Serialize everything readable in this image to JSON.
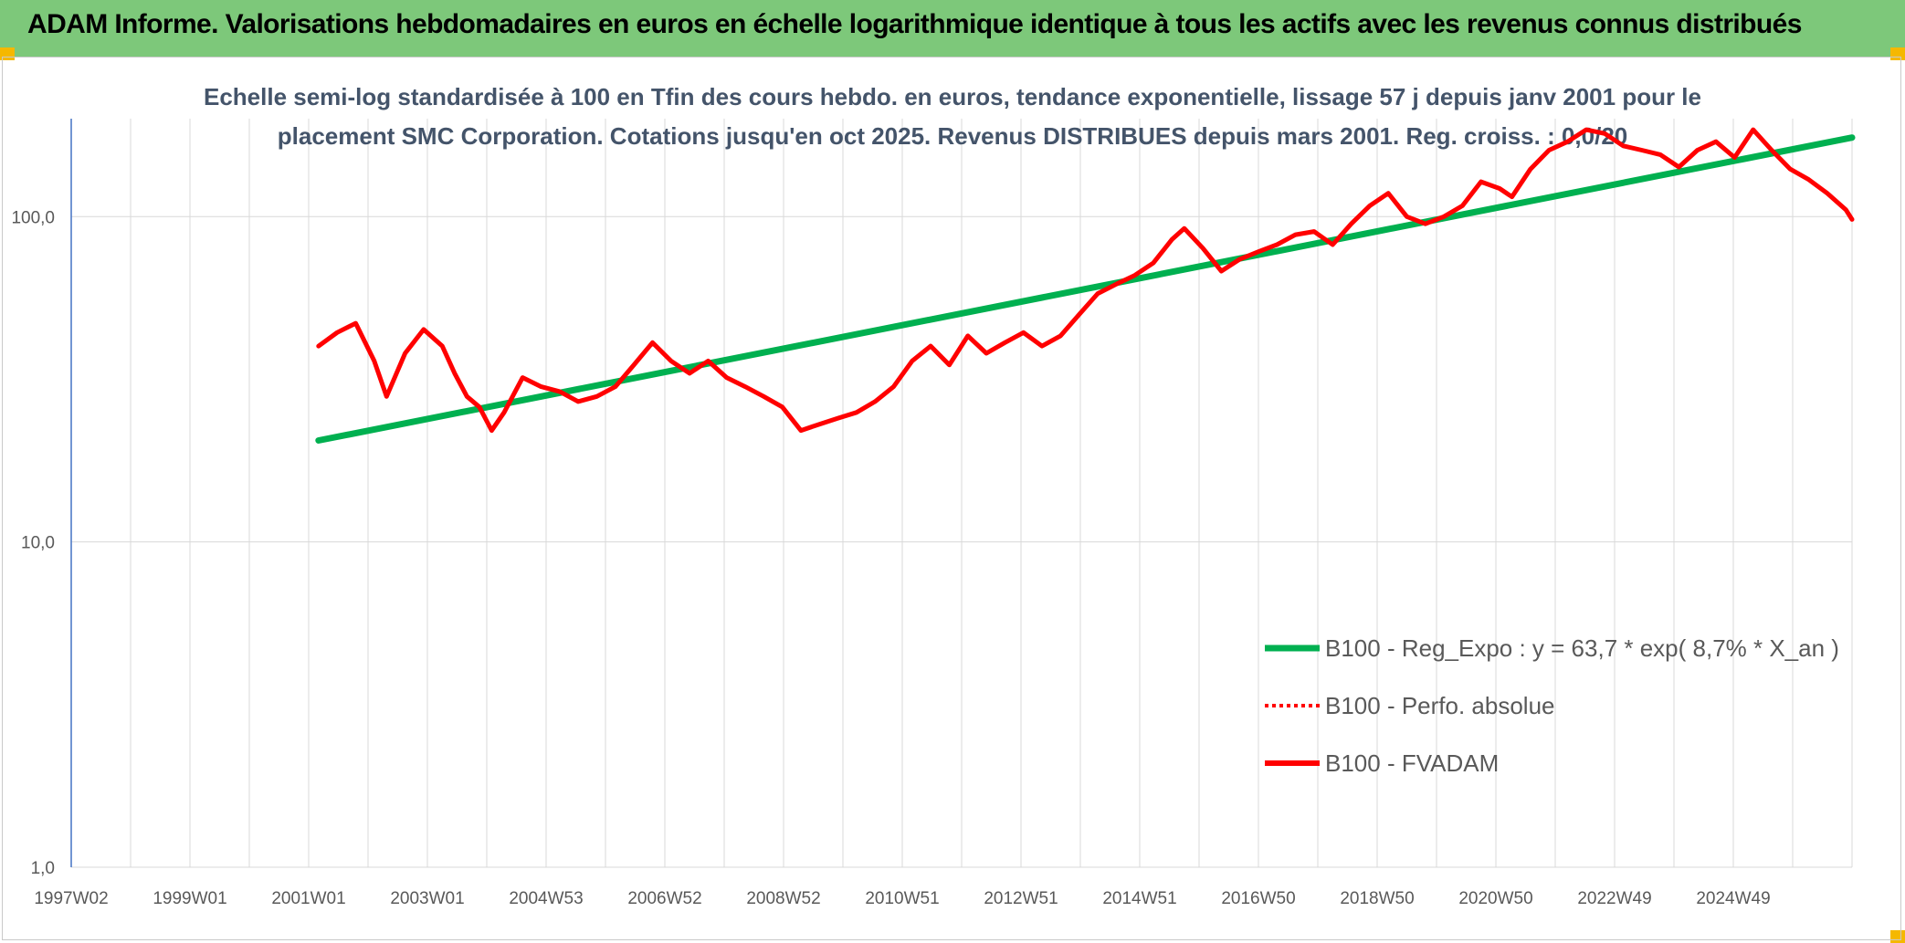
{
  "header": {
    "title": "ADAM Informe. Valorisations hebdomadaires en euros en échelle logarithmique identique à tous les actifs avec les revenus connus distribués"
  },
  "colors": {
    "banner": "#7dc87a",
    "trend": "#00b050",
    "perf": "#ff0000",
    "fvadam": "#ff0000",
    "grid": "#d9d9d9"
  },
  "chart_data": {
    "type": "line",
    "subtitle_lines": [
      "Echelle semi-log standardisée à 100 en Tfin des cours hebdo. en euros, tendance exponentielle, lissage 57 j depuis janv 2001 pour le",
      "placement SMC Corporation. Cotations jusqu'en oct 2025. Revenus DISTRIBUES depuis mars 2001. Reg. croiss. : 0,0/20"
    ],
    "y_scale": "log",
    "ylim": [
      1,
      200
    ],
    "y_ticks": [
      "1,0",
      "10,0",
      "100,0"
    ],
    "x_ticks": [
      "1997W02",
      "1999W01",
      "2001W01",
      "2003W01",
      "2004W53",
      "2006W52",
      "2008W52",
      "2010W51",
      "2012W51",
      "2014W51",
      "2016W50",
      "2018W50",
      "2020W50",
      "2022W49",
      "2024W49"
    ],
    "xlim": [
      1997.0,
      2025.8
    ],
    "grid": true,
    "legend_position": "bottom-right",
    "series": [
      {
        "name": "B100 - Reg_Expo : y = 63,7 * exp( 8,7% *  X_an )",
        "style": "solid-green",
        "x": [
          2001.0,
          2025.8
        ],
        "y": [
          20.5,
          175
        ]
      },
      {
        "name": "B100 - Perfo. absolue",
        "style": "dotted-red",
        "x": [],
        "y": []
      },
      {
        "name": "B100 - FVADAM",
        "style": "solid-red",
        "x": [
          2001.0,
          2001.3,
          2001.6,
          2001.9,
          2002.1,
          2002.4,
          2002.7,
          2003.0,
          2003.2,
          2003.4,
          2003.6,
          2003.8,
          2004.0,
          2004.3,
          2004.6,
          2004.9,
          2005.2,
          2005.5,
          2005.8,
          2006.1,
          2006.4,
          2006.7,
          2007.0,
          2007.3,
          2007.6,
          2007.9,
          2008.2,
          2008.5,
          2008.8,
          2009.1,
          2009.4,
          2009.7,
          2010.0,
          2010.3,
          2010.6,
          2010.9,
          2011.2,
          2011.5,
          2011.8,
          2012.1,
          2012.4,
          2012.7,
          2013.0,
          2013.3,
          2013.6,
          2013.9,
          2014.2,
          2014.5,
          2014.8,
          2015.0,
          2015.3,
          2015.6,
          2015.9,
          2016.2,
          2016.5,
          2016.8,
          2017.1,
          2017.4,
          2017.7,
          2018.0,
          2018.3,
          2018.6,
          2018.9,
          2019.2,
          2019.5,
          2019.8,
          2020.1,
          2020.3,
          2020.6,
          2020.9,
          2021.2,
          2021.5,
          2021.8,
          2022.1,
          2022.4,
          2022.7,
          2023.0,
          2023.3,
          2023.6,
          2023.9,
          2024.2,
          2024.5,
          2024.8,
          2025.1,
          2025.4,
          2025.7,
          2025.8
        ],
        "y": [
          40,
          44,
          47,
          36,
          28,
          38,
          45,
          40,
          33,
          28,
          26,
          22,
          25,
          32,
          30,
          29,
          27,
          28,
          30,
          35,
          41,
          36,
          33,
          36,
          32,
          30,
          28,
          26,
          22,
          23,
          24,
          25,
          27,
          30,
          36,
          40,
          35,
          43,
          38,
          41,
          44,
          40,
          43,
          50,
          58,
          62,
          66,
          72,
          85,
          92,
          80,
          68,
          74,
          78,
          82,
          88,
          90,
          82,
          95,
          108,
          118,
          100,
          95,
          100,
          108,
          128,
          122,
          115,
          140,
          160,
          170,
          185,
          180,
          165,
          160,
          155,
          142,
          160,
          170,
          152,
          185,
          160,
          140,
          130,
          118,
          105,
          98
        ]
      }
    ]
  }
}
